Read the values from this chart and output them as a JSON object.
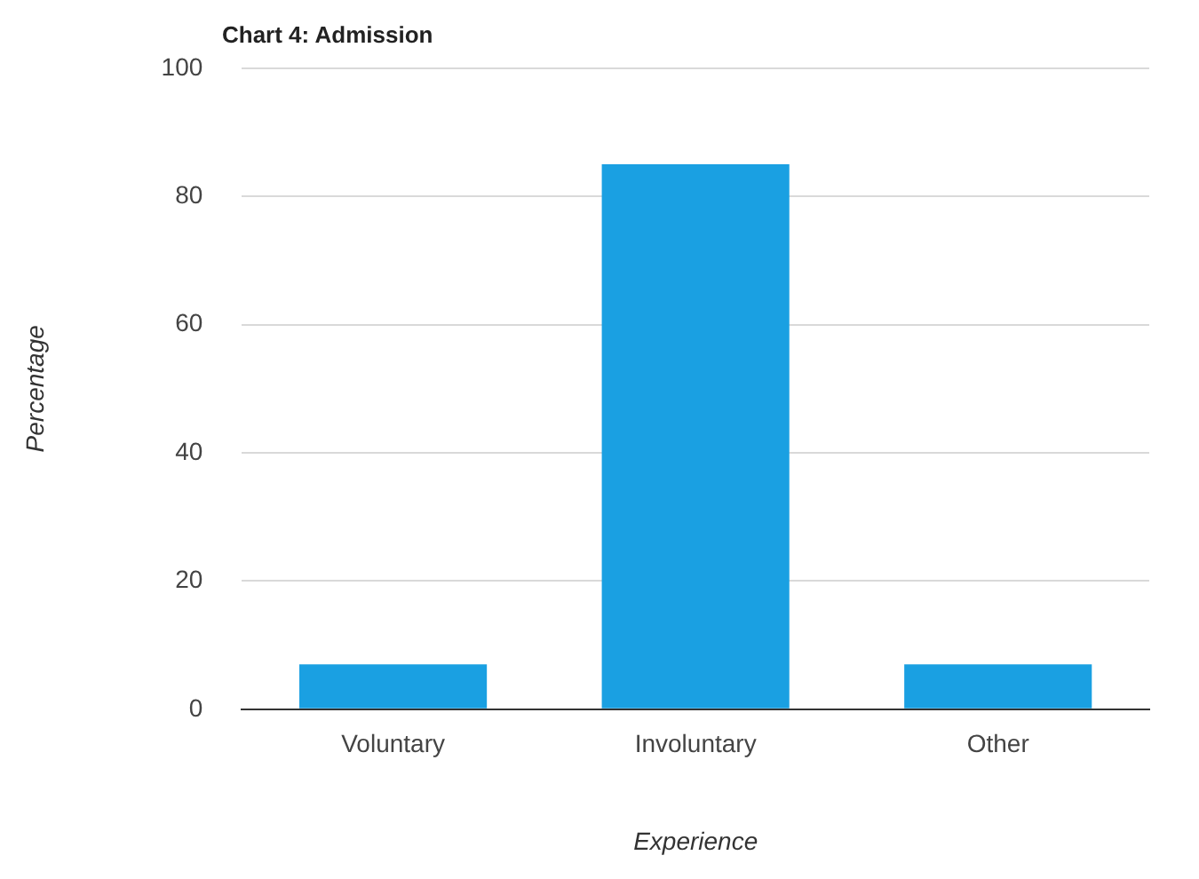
{
  "chart_data": {
    "type": "bar",
    "title": "Chart 4: Admission",
    "xlabel": "Experience",
    "ylabel": "Percentage",
    "categories": [
      "Voluntary",
      "Involuntary",
      "Other"
    ],
    "values": [
      7,
      85,
      7
    ],
    "color": "#1aa0e2",
    "ylim": [
      0,
      100
    ],
    "yticks": [
      0,
      20,
      40,
      60,
      80,
      100
    ],
    "grid": "y"
  }
}
